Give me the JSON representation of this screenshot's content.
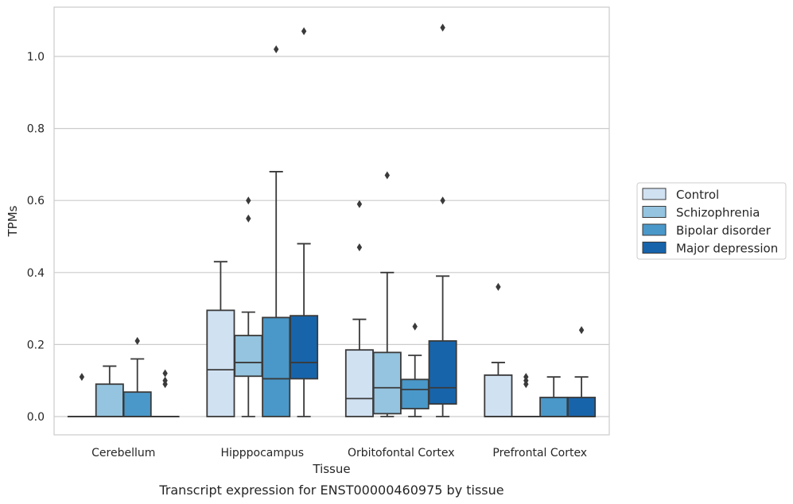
{
  "chart_data": {
    "type": "box",
    "title": "",
    "caption": "Transcript expression for ENST00000460975 by tissue",
    "xlabel": "Tissue",
    "ylabel": "TPMs",
    "ylim": [
      -0.05,
      1.135
    ],
    "yticks": [
      0.0,
      0.2,
      0.4,
      0.6,
      0.8,
      1.0
    ],
    "ytick_labels": [
      "0.0",
      "0.2",
      "0.4",
      "0.6",
      "0.8",
      "1.0"
    ],
    "categories": [
      "Cerebellum",
      "Hipppocampus",
      "Orbitofontal Cortex",
      "Prefrontal Cortex"
    ],
    "grid": "horizontal",
    "legend_position": "right",
    "series": [
      {
        "name": "Control",
        "color": "#d0e1f2",
        "boxes": [
          {
            "q1": 0.0,
            "median": 0.0,
            "q3": 0.0,
            "whisker_low": 0.0,
            "whisker_high": 0.0,
            "outliers": [
              0.11
            ]
          },
          {
            "q1": 0.0,
            "median": 0.13,
            "q3": 0.295,
            "whisker_low": 0.0,
            "whisker_high": 0.43,
            "outliers": []
          },
          {
            "q1": 0.0,
            "median": 0.05,
            "q3": 0.185,
            "whisker_low": 0.0,
            "whisker_high": 0.27,
            "outliers": [
              0.47,
              0.59
            ]
          },
          {
            "q1": 0.0,
            "median": 0.0,
            "q3": 0.115,
            "whisker_low": 0.0,
            "whisker_high": 0.15,
            "outliers": [
              0.36
            ]
          }
        ]
      },
      {
        "name": "Schizophrenia",
        "color": "#94c4df",
        "boxes": [
          {
            "q1": 0.0,
            "median": 0.0,
            "q3": 0.09,
            "whisker_low": 0.0,
            "whisker_high": 0.14,
            "outliers": []
          },
          {
            "q1": 0.112,
            "median": 0.15,
            "q3": 0.225,
            "whisker_low": 0.0,
            "whisker_high": 0.29,
            "outliers": [
              0.55,
              0.6
            ]
          },
          {
            "q1": 0.008,
            "median": 0.08,
            "q3": 0.178,
            "whisker_low": 0.0,
            "whisker_high": 0.4,
            "outliers": [
              0.67
            ]
          },
          {
            "q1": 0.0,
            "median": 0.0,
            "q3": 0.0,
            "whisker_low": 0.0,
            "whisker_high": 0.0,
            "outliers": [
              0.09,
              0.1,
              0.11
            ]
          }
        ]
      },
      {
        "name": "Bipolar disorder",
        "color": "#4a98c9",
        "boxes": [
          {
            "q1": 0.0,
            "median": 0.0,
            "q3": 0.068,
            "whisker_low": 0.0,
            "whisker_high": 0.16,
            "outliers": [
              0.21
            ]
          },
          {
            "q1": 0.0,
            "median": 0.105,
            "q3": 0.275,
            "whisker_low": 0.0,
            "whisker_high": 0.68,
            "outliers": [
              1.02
            ]
          },
          {
            "q1": 0.022,
            "median": 0.075,
            "q3": 0.103,
            "whisker_low": 0.0,
            "whisker_high": 0.17,
            "outliers": [
              0.25
            ]
          },
          {
            "q1": 0.0,
            "median": 0.0,
            "q3": 0.053,
            "whisker_low": 0.0,
            "whisker_high": 0.11,
            "outliers": []
          }
        ]
      },
      {
        "name": "Major depression",
        "color": "#1764ab",
        "boxes": [
          {
            "q1": 0.0,
            "median": 0.0,
            "q3": 0.0,
            "whisker_low": 0.0,
            "whisker_high": 0.0,
            "outliers": [
              0.09,
              0.1,
              0.12
            ]
          },
          {
            "q1": 0.105,
            "median": 0.15,
            "q3": 0.28,
            "whisker_low": 0.0,
            "whisker_high": 0.48,
            "outliers": [
              1.07
            ]
          },
          {
            "q1": 0.035,
            "median": 0.08,
            "q3": 0.21,
            "whisker_low": 0.0,
            "whisker_high": 0.39,
            "outliers": [
              0.6,
              1.08
            ]
          },
          {
            "q1": 0.0,
            "median": 0.0,
            "q3": 0.053,
            "whisker_low": 0.0,
            "whisker_high": 0.11,
            "outliers": [
              0.24
            ]
          }
        ]
      }
    ]
  }
}
